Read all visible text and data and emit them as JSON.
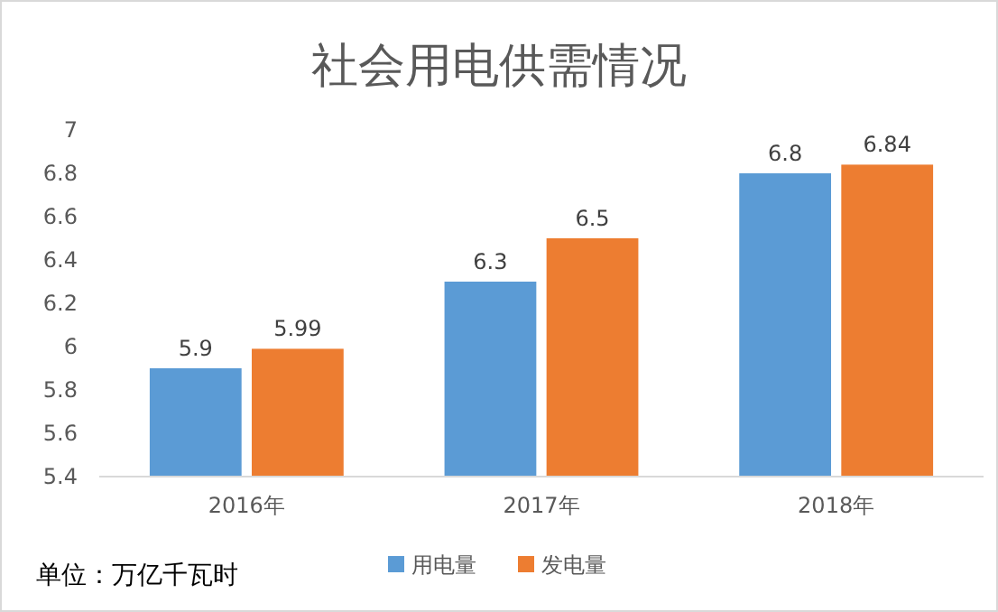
{
  "chart_data": {
    "type": "bar",
    "title": "社会用电供需情况",
    "categories": [
      "2016年",
      "2017年",
      "2018年"
    ],
    "series": [
      {
        "name": "用电量",
        "color": "#5b9bd5",
        "values": [
          5.9,
          6.3,
          6.8
        ]
      },
      {
        "name": "发电量",
        "color": "#ed7d31",
        "values": [
          5.99,
          6.5,
          6.84
        ]
      }
    ],
    "ylim": [
      5.4,
      7
    ],
    "yticks": [
      5.4,
      5.6,
      5.8,
      6,
      6.2,
      6.4,
      6.6,
      6.8,
      7
    ],
    "grid": false,
    "data_labels": true,
    "legend": "bottom",
    "annotations": [
      "单位：万亿千瓦时"
    ]
  }
}
